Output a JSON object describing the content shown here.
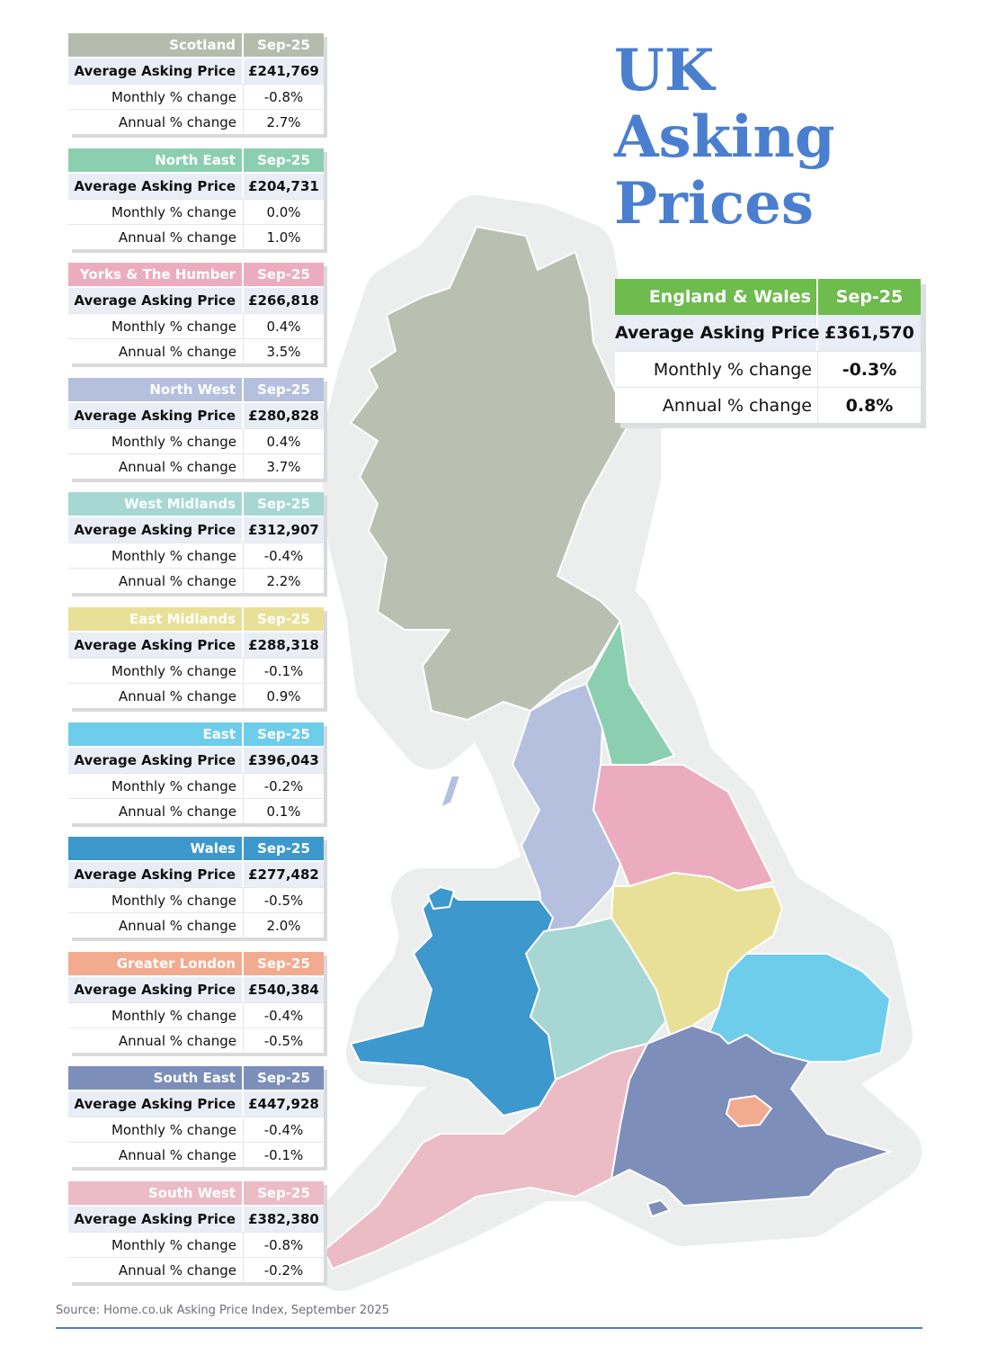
{
  "title_lines": [
    "UK",
    "Asking",
    "Prices"
  ],
  "row_labels": {
    "avg": "Average Asking Price",
    "monthly": "Monthly % change",
    "annual": "Annual % change"
  },
  "regions": [
    {
      "name": "Scotland",
      "period": "Sep-25",
      "avg": "£241,769",
      "monthly": "-0.8%",
      "annual": "2.7%",
      "color": "#b5bcad"
    },
    {
      "name": "North East",
      "period": "Sep-25",
      "avg": "£204,731",
      "monthly": "0.0%",
      "annual": "1.0%",
      "color": "#8ccfb0"
    },
    {
      "name": "Yorks & The Humber",
      "period": "Sep-25",
      "avg": "£266,818",
      "monthly": "0.4%",
      "annual": "3.5%",
      "color": "#ecacc0"
    },
    {
      "name": "North West",
      "period": "Sep-25",
      "avg": "£280,828",
      "monthly": "0.4%",
      "annual": "3.7%",
      "color": "#b4c0de"
    },
    {
      "name": "West Midlands",
      "period": "Sep-25",
      "avg": "£312,907",
      "monthly": "-0.4%",
      "annual": "2.2%",
      "color": "#a6d7d3"
    },
    {
      "name": "East Midlands",
      "period": "Sep-25",
      "avg": "£288,318",
      "monthly": "-0.1%",
      "annual": "0.9%",
      "color": "#e8e097"
    },
    {
      "name": "East",
      "period": "Sep-25",
      "avg": "£396,043",
      "monthly": "-0.2%",
      "annual": "0.1%",
      "color": "#6ecdeb"
    },
    {
      "name": "Wales",
      "period": "Sep-25",
      "avg": "£277,482",
      "monthly": "-0.5%",
      "annual": "2.0%",
      "color": "#3d98cd"
    },
    {
      "name": "Greater London",
      "period": "Sep-25",
      "avg": "£540,384",
      "monthly": "-0.4%",
      "annual": "-0.5%",
      "color": "#f2ab8f"
    },
    {
      "name": "South East",
      "period": "Sep-25",
      "avg": "£447,928",
      "monthly": "-0.4%",
      "annual": "-0.1%",
      "color": "#7d8eba"
    },
    {
      "name": "South West",
      "period": "Sep-25",
      "avg": "£382,380",
      "monthly": "-0.8%",
      "annual": "-0.2%",
      "color": "#ebbcc6"
    }
  ],
  "england_wales": {
    "name": "England & Wales",
    "period": "Sep-25",
    "avg": "£361,570",
    "monthly": "-0.3%",
    "annual": "0.8%",
    "color": "#6ebb4e"
  },
  "source": "Source: Home.co.uk Asking Price Index, September 2025",
  "colors": {
    "title": "#4a7fd0",
    "halo": "#eceded",
    "row_highlight": "#e9edf6"
  }
}
